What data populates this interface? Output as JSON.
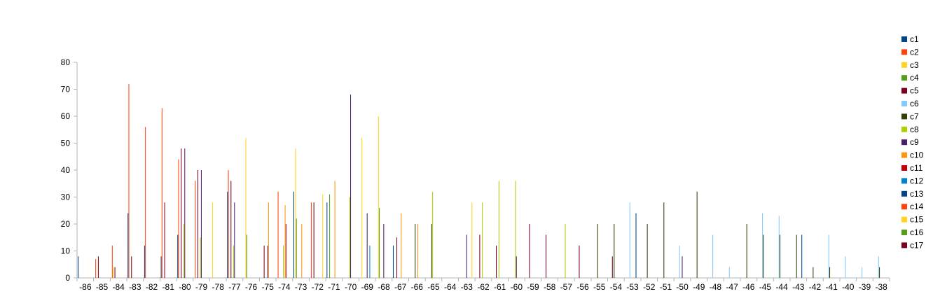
{
  "chart_data": {
    "type": "bar",
    "title": "",
    "xlabel": "",
    "ylabel": "",
    "ylim": [
      0,
      80
    ],
    "yticks": [
      0,
      10,
      20,
      30,
      40,
      50,
      60,
      70,
      80
    ],
    "grid": false,
    "legend_position": "right",
    "categories": [
      "-86",
      "-85",
      "-84",
      "-83",
      "-82",
      "-81",
      "-80",
      "-79",
      "-78",
      "-77",
      "-76",
      "-75",
      "-74",
      "-73",
      "-72",
      "-71",
      "-70",
      "-69",
      "-68",
      "-67",
      "-66",
      "-65",
      "-64",
      "-63",
      "-62",
      "-61",
      "-60",
      "-59",
      "-58",
      "-57",
      "-56",
      "-55",
      "-54",
      "-53",
      "-52",
      "-51",
      "-50",
      "-49",
      "-48",
      "-47",
      "-46",
      "-45",
      "-44",
      "-43",
      "-42",
      "-41",
      "-40",
      "-39",
      "-38"
    ],
    "series": [
      {
        "name": "c1",
        "color": "#004586",
        "values": [
          8,
          0,
          0,
          24,
          12,
          8,
          16,
          0,
          0,
          32,
          0,
          0,
          0,
          32,
          0,
          28,
          0,
          0,
          0,
          12,
          0,
          0,
          0,
          0,
          0,
          0,
          0,
          0,
          0,
          0,
          0,
          0,
          0,
          0,
          0,
          0,
          0,
          0,
          0,
          0,
          0,
          0,
          0,
          0,
          0,
          0,
          0,
          0,
          0
        ]
      },
      {
        "name": "c2",
        "color": "#ff420e",
        "values": [
          0,
          7,
          12,
          72,
          56,
          63,
          44,
          36,
          0,
          40,
          0,
          0,
          32,
          0,
          28,
          0,
          0,
          0,
          0,
          0,
          0,
          0,
          0,
          0,
          0,
          0,
          0,
          0,
          0,
          0,
          0,
          0,
          0,
          0,
          0,
          0,
          0,
          0,
          0,
          0,
          0,
          0,
          0,
          0,
          0,
          0,
          0,
          0,
          0
        ]
      },
      {
        "name": "c3",
        "color": "#ffd320",
        "values": [
          0,
          0,
          4,
          0,
          0,
          0,
          0,
          0,
          28,
          0,
          52,
          0,
          0,
          48,
          0,
          0,
          0,
          52,
          60,
          0,
          0,
          0,
          0,
          0,
          0,
          0,
          0,
          0,
          0,
          0,
          0,
          0,
          0,
          0,
          0,
          0,
          0,
          0,
          0,
          0,
          0,
          0,
          0,
          0,
          0,
          0,
          0,
          0,
          0
        ]
      },
      {
        "name": "c4",
        "color": "#579d1c",
        "values": [
          0,
          0,
          0,
          0,
          0,
          0,
          0,
          0,
          0,
          0,
          16,
          0,
          0,
          22,
          0,
          31,
          0,
          0,
          26,
          0,
          0,
          0,
          0,
          0,
          0,
          0,
          0,
          0,
          0,
          0,
          0,
          0,
          0,
          0,
          0,
          0,
          0,
          0,
          0,
          0,
          0,
          0,
          0,
          0,
          0,
          0,
          0,
          0,
          0
        ]
      },
      {
        "name": "c5",
        "color": "#7e0021",
        "values": [
          0,
          8,
          4,
          8,
          0,
          28,
          48,
          40,
          0,
          36,
          0,
          12,
          0,
          0,
          28,
          0,
          0,
          0,
          0,
          15,
          0,
          0,
          0,
          0,
          16,
          12,
          0,
          20,
          16,
          0,
          12,
          0,
          8,
          0,
          0,
          0,
          0,
          0,
          0,
          0,
          0,
          0,
          0,
          0,
          0,
          0,
          0,
          0,
          0
        ]
      },
      {
        "name": "c6",
        "color": "#83caff",
        "values": [
          0,
          0,
          0,
          0,
          0,
          0,
          0,
          0,
          0,
          0,
          0,
          0,
          0,
          0,
          0,
          0,
          0,
          0,
          0,
          0,
          0,
          0,
          0,
          0,
          0,
          0,
          0,
          0,
          0,
          0,
          0,
          0,
          0,
          28,
          0,
          0,
          12,
          0,
          16,
          4,
          0,
          24,
          23,
          0,
          0,
          16,
          8,
          4,
          8
        ]
      },
      {
        "name": "c7",
        "color": "#314004",
        "values": [
          0,
          0,
          0,
          0,
          0,
          0,
          0,
          0,
          0,
          0,
          0,
          0,
          0,
          0,
          0,
          0,
          0,
          0,
          0,
          0,
          20,
          20,
          0,
          0,
          0,
          0,
          0,
          0,
          0,
          0,
          0,
          20,
          20,
          0,
          20,
          28,
          0,
          32,
          0,
          0,
          20,
          16,
          16,
          16,
          4,
          4,
          0,
          0,
          4
        ]
      },
      {
        "name": "c8",
        "color": "#aecf00",
        "values": [
          0,
          0,
          0,
          0,
          0,
          0,
          20,
          15,
          0,
          12,
          0,
          0,
          12,
          0,
          0,
          0,
          30,
          0,
          0,
          0,
          0,
          32,
          0,
          0,
          28,
          36,
          36,
          0,
          0,
          20,
          0,
          0,
          0,
          0,
          0,
          0,
          0,
          0,
          0,
          0,
          0,
          0,
          0,
          0,
          0,
          0,
          0,
          0,
          0
        ]
      },
      {
        "name": "c9",
        "color": "#4b1f6f",
        "values": [
          0,
          0,
          0,
          0,
          0,
          0,
          48,
          40,
          0,
          28,
          0,
          12,
          0,
          0,
          0,
          0,
          68,
          24,
          20,
          0,
          0,
          0,
          0,
          16,
          0,
          0,
          8,
          0,
          0,
          0,
          0,
          0,
          0,
          0,
          0,
          0,
          8,
          0,
          0,
          0,
          0,
          0,
          0,
          0,
          0,
          0,
          0,
          0,
          0
        ]
      },
      {
        "name": "c10",
        "color": "#ff950e",
        "values": [
          0,
          0,
          0,
          0,
          0,
          0,
          0,
          0,
          0,
          0,
          0,
          28,
          27,
          20,
          0,
          36,
          0,
          0,
          0,
          24,
          20,
          0,
          0,
          0,
          0,
          0,
          0,
          0,
          0,
          0,
          0,
          0,
          0,
          0,
          0,
          0,
          0,
          0,
          0,
          0,
          0,
          0,
          0,
          0,
          0,
          0,
          0,
          0,
          0
        ]
      },
      {
        "name": "c11",
        "color": "#c5000b",
        "values": [
          0,
          0,
          0,
          0,
          0,
          0,
          0,
          0,
          0,
          0,
          0,
          0,
          20,
          0,
          0,
          0,
          0,
          0,
          0,
          0,
          0,
          0,
          0,
          0,
          0,
          0,
          0,
          0,
          0,
          0,
          0,
          0,
          0,
          0,
          0,
          0,
          0,
          0,
          0,
          0,
          0,
          0,
          0,
          0,
          0,
          0,
          0,
          0,
          0
        ]
      },
      {
        "name": "c12",
        "color": "#0084d1",
        "values": [
          0,
          0,
          0,
          0,
          0,
          0,
          0,
          0,
          0,
          0,
          0,
          0,
          0,
          0,
          0,
          0,
          0,
          12,
          0,
          0,
          0,
          0,
          0,
          0,
          0,
          0,
          0,
          0,
          0,
          0,
          0,
          0,
          0,
          0,
          0,
          0,
          0,
          0,
          0,
          0,
          0,
          0,
          0,
          0,
          0,
          0,
          0,
          0,
          0
        ]
      },
      {
        "name": "c13",
        "color": "#004586",
        "values": [
          0,
          0,
          0,
          0,
          0,
          0,
          0,
          0,
          0,
          0,
          0,
          0,
          0,
          0,
          0,
          0,
          0,
          0,
          0,
          0,
          0,
          0,
          0,
          0,
          0,
          0,
          0,
          0,
          0,
          0,
          0,
          0,
          0,
          24,
          0,
          0,
          0,
          0,
          0,
          0,
          0,
          0,
          0,
          16,
          0,
          0,
          0,
          0,
          0
        ]
      },
      {
        "name": "c14",
        "color": "#ff420e",
        "values": [
          0,
          0,
          0,
          0,
          0,
          0,
          0,
          0,
          0,
          0,
          0,
          0,
          0,
          0,
          0,
          0,
          0,
          0,
          0,
          0,
          0,
          0,
          0,
          0,
          0,
          0,
          0,
          0,
          0,
          0,
          0,
          0,
          0,
          0,
          0,
          0,
          0,
          0,
          0,
          0,
          0,
          0,
          0,
          0,
          0,
          0,
          0,
          0,
          0
        ]
      },
      {
        "name": "c15",
        "color": "#ffd320",
        "values": [
          0,
          0,
          0,
          0,
          0,
          0,
          0,
          0,
          0,
          0,
          0,
          0,
          0,
          0,
          31,
          0,
          0,
          0,
          0,
          0,
          0,
          0,
          0,
          28,
          0,
          0,
          0,
          0,
          0,
          0,
          0,
          0,
          0,
          0,
          0,
          0,
          0,
          0,
          0,
          0,
          0,
          0,
          0,
          0,
          0,
          0,
          0,
          0,
          0
        ]
      },
      {
        "name": "c16",
        "color": "#579d1c",
        "values": [
          0,
          0,
          0,
          0,
          0,
          0,
          0,
          0,
          0,
          0,
          0,
          0,
          0,
          0,
          0,
          0,
          0,
          0,
          0,
          0,
          0,
          0,
          0,
          0,
          0,
          0,
          0,
          0,
          0,
          0,
          0,
          0,
          0,
          0,
          0,
          0,
          0,
          0,
          0,
          0,
          0,
          0,
          0,
          0,
          0,
          0,
          0,
          0,
          0
        ]
      },
      {
        "name": "c17",
        "color": "#7e0021",
        "values": [
          0,
          0,
          0,
          0,
          0,
          0,
          0,
          0,
          0,
          0,
          0,
          0,
          0,
          0,
          0,
          0,
          0,
          0,
          0,
          0,
          0,
          0,
          0,
          0,
          0,
          0,
          0,
          0,
          0,
          0,
          0,
          0,
          0,
          0,
          0,
          0,
          0,
          0,
          0,
          0,
          0,
          0,
          0,
          0,
          0,
          0,
          0,
          0,
          0
        ]
      }
    ]
  }
}
